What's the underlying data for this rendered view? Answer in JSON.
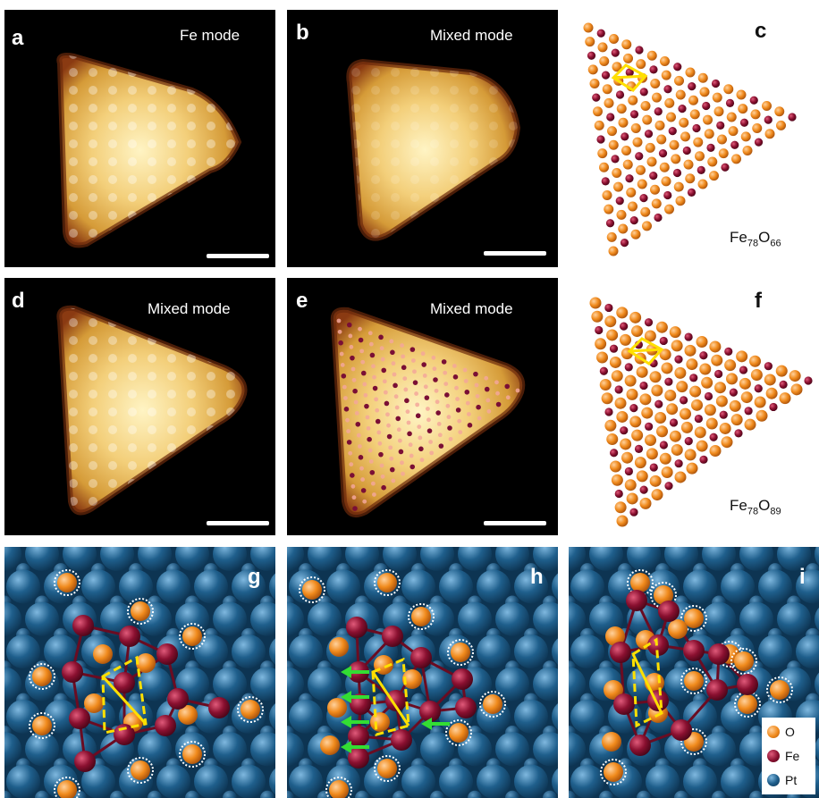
{
  "panels": {
    "a": {
      "letter": "a",
      "mode": "Fe mode"
    },
    "b": {
      "letter": "b",
      "mode": "Mixed mode"
    },
    "c": {
      "letter": "c",
      "formula_base1": "Fe",
      "formula_sub1": "78",
      "formula_base2": "O",
      "formula_sub2": "66"
    },
    "d": {
      "letter": "d",
      "mode": "Mixed mode"
    },
    "e": {
      "letter": "e",
      "mode": "Mixed mode"
    },
    "f": {
      "letter": "f",
      "formula_base1": "Fe",
      "formula_sub1": "78",
      "formula_base2": "O",
      "formula_sub2": "89"
    },
    "g": {
      "letter": "g"
    },
    "h": {
      "letter": "h"
    },
    "i": {
      "letter": "i"
    }
  },
  "legend": [
    {
      "label": "O",
      "color": "#f08a1c"
    },
    {
      "label": "Fe",
      "color": "#8a1030"
    },
    {
      "label": "Pt",
      "color": "#1f5f8c"
    }
  ],
  "colors": {
    "o_atom": "#f08a1c",
    "fe_atom": "#8a1030",
    "pt_atom": "#1f5f8c",
    "unit_cell": "#ffe000",
    "arrow": "#33dd33"
  }
}
